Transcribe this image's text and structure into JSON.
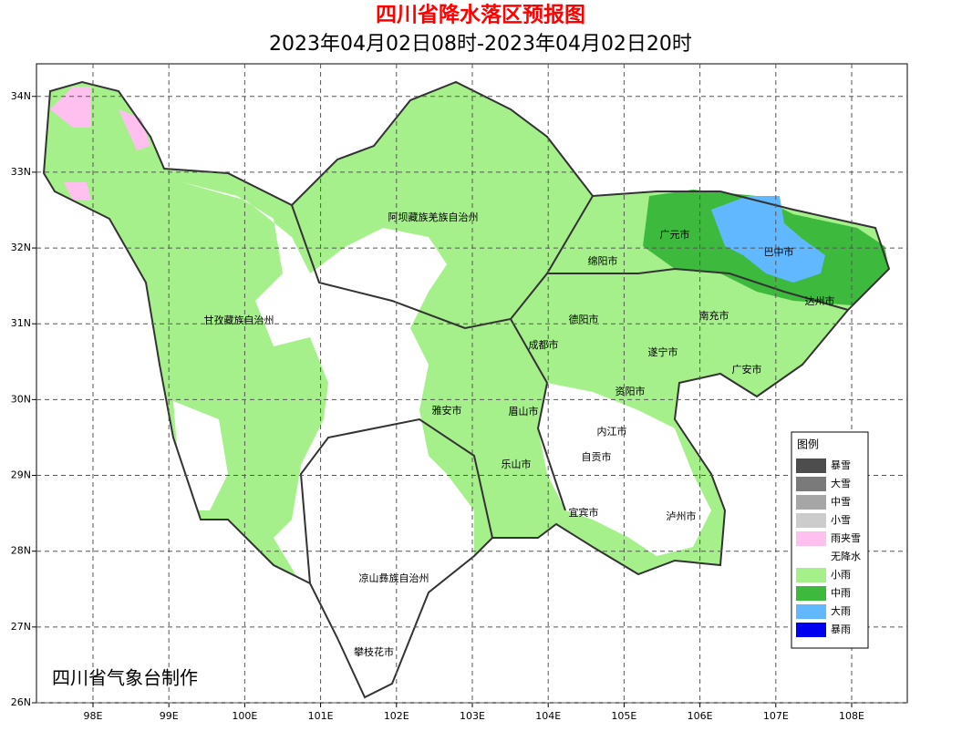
{
  "title": "四川省降水落区预报图",
  "subtitle": "2023年04月02日08时-2023年04月02日20时",
  "credit": "四川省气象台制作",
  "map": {
    "xlim": [
      97.255,
      108.733
    ],
    "ylim": [
      26,
      34.43
    ],
    "grid": true,
    "xticks": [
      {
        "value": 98,
        "label": "98E"
      },
      {
        "value": 99,
        "label": "99E"
      },
      {
        "value": 100,
        "label": "100E"
      },
      {
        "value": 101,
        "label": "101E"
      },
      {
        "value": 102,
        "label": "102E"
      },
      {
        "value": 103,
        "label": "103E"
      },
      {
        "value": 104,
        "label": "104E"
      },
      {
        "value": 105,
        "label": "105E"
      },
      {
        "value": 106,
        "label": "106E"
      },
      {
        "value": 107,
        "label": "107E"
      },
      {
        "value": 108,
        "label": "108E"
      }
    ],
    "yticks": [
      {
        "value": 26,
        "label": "26N"
      },
      {
        "value": 27,
        "label": "27N"
      },
      {
        "value": 28,
        "label": "28N"
      },
      {
        "value": 29,
        "label": "29N"
      },
      {
        "value": 30,
        "label": "30N"
      },
      {
        "value": 31,
        "label": "31N"
      },
      {
        "value": 32,
        "label": "32N"
      },
      {
        "value": 33,
        "label": "33N"
      },
      {
        "value": 34,
        "label": "34N"
      }
    ]
  },
  "regions": [
    "阿坝藏族羌族自治州",
    "甘孜藏族自治州",
    "广元市",
    "巴中市",
    "绵阳市",
    "南充市",
    "达州市",
    "德阳市",
    "成都市",
    "遂宁市",
    "广安市",
    "资阳市",
    "雅安市",
    "眉山市",
    "内江市",
    "自贡市",
    "乐山市",
    "宜宾市",
    "泸州市",
    "凉山彝族自治州",
    "攀枝花市"
  ],
  "legend": {
    "title": "图例",
    "items": [
      {
        "label": "暴雪",
        "color": "#4d4d4d"
      },
      {
        "label": "大雪",
        "color": "#7a7a7a"
      },
      {
        "label": "中雪",
        "color": "#a6a6a6"
      },
      {
        "label": "小雪",
        "color": "#cccccc"
      },
      {
        "label": "雨夹雪",
        "color": "#ffbfef"
      },
      {
        "label": "无降水",
        "color": "#ffffff"
      },
      {
        "label": "小雨",
        "color": "#a6f08c"
      },
      {
        "label": "中雨",
        "color": "#3dba3d"
      },
      {
        "label": "大雨",
        "color": "#61b8ff"
      },
      {
        "label": "暴雨",
        "color": "#0000f0"
      }
    ]
  }
}
